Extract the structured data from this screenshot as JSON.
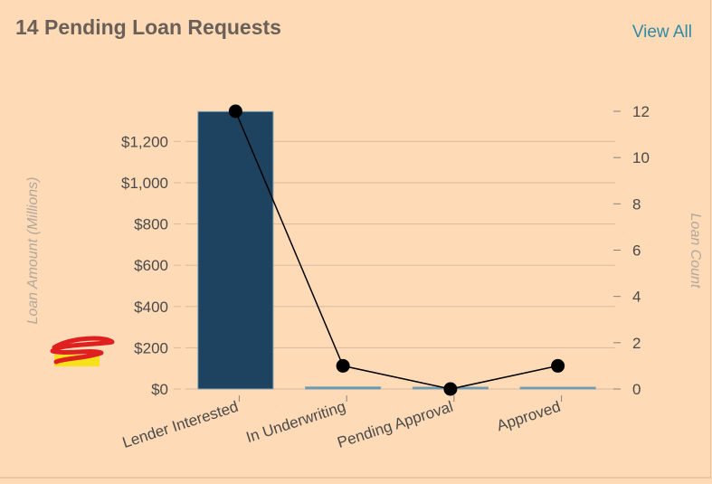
{
  "header": {
    "title": "14 Pending Loan Requests",
    "view_all": "View All"
  },
  "colors": {
    "background": "#fedab7",
    "bar_primary": "#1d4361",
    "bar_secondary": "#5f96ad",
    "line": "#000000",
    "grid": "#d6baa0",
    "annotation_red": "#e02020",
    "annotation_yellow": "#f7e11a"
  },
  "chart_data": {
    "type": "bar+line",
    "categories": [
      "Lender Interested",
      "In Underwriting",
      "Pending Approval",
      "Approved"
    ],
    "series": [
      {
        "values": [
          1345,
          10,
          0,
          8
        ],
        "axis": "left",
        "kind": "bar"
      },
      {
        "values": [
          12,
          1,
          0,
          1
        ],
        "axis": "right",
        "kind": "line"
      }
    ],
    "ylabel": "Loan Amount (Millions)",
    "y2label": "Loan Count",
    "y_ticks": [
      "$0",
      "$200",
      "$400",
      "$600",
      "$800",
      "$1,000",
      "$1,200"
    ],
    "y_tick_values": [
      0,
      200,
      400,
      600,
      800,
      1000,
      1200
    ],
    "y2_ticks": [
      "0",
      "2",
      "4",
      "6",
      "8",
      "10",
      "12"
    ],
    "y2_tick_values": [
      0,
      2,
      4,
      6,
      8,
      10,
      12
    ],
    "ylim": [
      0,
      1350
    ],
    "y2lim": [
      0,
      12
    ],
    "grid": true,
    "legend": "none"
  }
}
